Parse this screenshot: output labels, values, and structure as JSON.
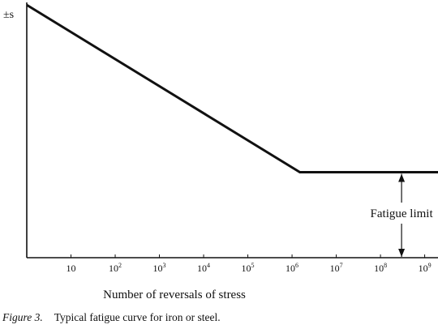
{
  "chart_data": {
    "type": "line",
    "y_axis_label": "±s",
    "xlabel": "Number of reversals of stress",
    "x_scale": "log",
    "x_ticks": [
      {
        "value": 10,
        "base": "10",
        "exp": ""
      },
      {
        "value": 100,
        "base": "10",
        "exp": "2"
      },
      {
        "value": 1000,
        "base": "10",
        "exp": "3"
      },
      {
        "value": 10000,
        "base": "10",
        "exp": "4"
      },
      {
        "value": 100000,
        "base": "10",
        "exp": "5"
      },
      {
        "value": 1000000,
        "base": "10",
        "exp": "6"
      },
      {
        "value": 10000000,
        "base": "10",
        "exp": "7"
      },
      {
        "value": 100000000,
        "base": "10",
        "exp": "8"
      },
      {
        "value": 1000000000,
        "base": "10",
        "exp": "9"
      }
    ],
    "xlim": [
      1,
      2000000000
    ],
    "ylim": [
      0,
      1
    ],
    "series": [
      {
        "points": [
          [
            1,
            0.99
          ],
          [
            1500000,
            0.335
          ],
          [
            2000000000,
            0.335
          ]
        ]
      }
    ],
    "annotation": {
      "text": "Fatigue limit",
      "x": 300000000,
      "y_from": 0,
      "y_to": 0.335
    },
    "line_color": "#111111"
  },
  "caption": {
    "figure": "Figure 3.",
    "text": "Typical fatigue curve for iron or steel."
  }
}
